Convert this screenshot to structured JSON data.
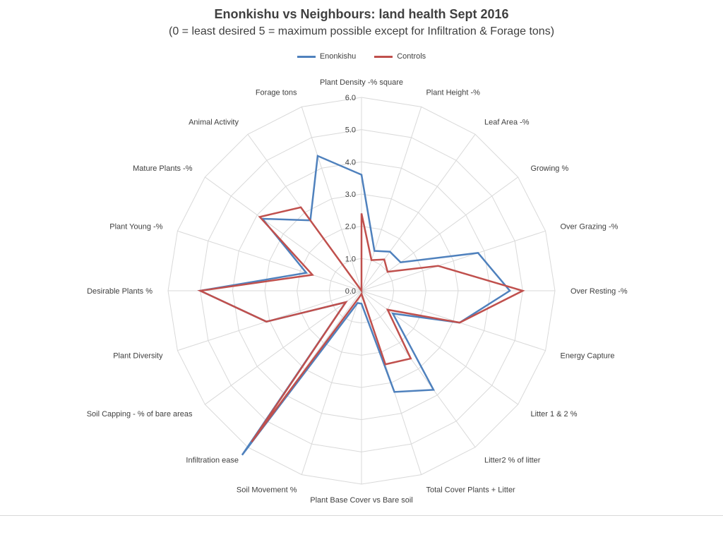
{
  "colors": {
    "enonkishu": "#4f81bd",
    "controls": "#c0504d",
    "grid": "#d9d9d9"
  },
  "chart_data": {
    "type": "radar",
    "title": "Enonkishu vs Neighbours: land health Sept 2016",
    "subtitle": "(0 = least desired 5 = maximum possible except for Infiltration & Forage tons)",
    "categories": [
      "Plant Density -% square",
      "Plant Height -%",
      "Leaf Area -%",
      "Growing %",
      "Over Grazing -%",
      "Over Resting -%",
      "Energy Capture",
      "Litter 1 & 2 %",
      "Litter2 % of litter",
      "Total Cover Plants + Litter",
      "Plant Base Cover  vs Bare soil",
      "Soil Movement %",
      "Infiltration ease",
      "Soil Capping - % of bare areas",
      "Plant Diversity",
      "Desirable Plants %",
      "Plant Young -%",
      "Mature Plants -%",
      "Animal Activity",
      "Forage tons"
    ],
    "rlim": [
      0,
      6
    ],
    "ticks": [
      "0.0",
      "1.0",
      "2.0",
      "3.0",
      "4.0",
      "5.0",
      "6.0"
    ],
    "legend_position": "top",
    "series": [
      {
        "name": "Enonkishu",
        "values": [
          3.6,
          1.3,
          1.5,
          1.5,
          3.8,
          4.6,
          3.2,
          1.2,
          3.8,
          3.3,
          0.4,
          0.4,
          6.3,
          0.6,
          3.1,
          5.0,
          1.8,
          3.8,
          2.7,
          4.4
        ]
      },
      {
        "name": "Controls",
        "values": [
          2.4,
          1.0,
          1.2,
          1.0,
          2.5,
          5.0,
          3.2,
          1.0,
          2.6,
          2.4,
          0.1,
          0.2,
          5.8,
          0.6,
          3.1,
          5.0,
          1.6,
          3.9,
          3.2,
          0.0
        ]
      }
    ]
  }
}
